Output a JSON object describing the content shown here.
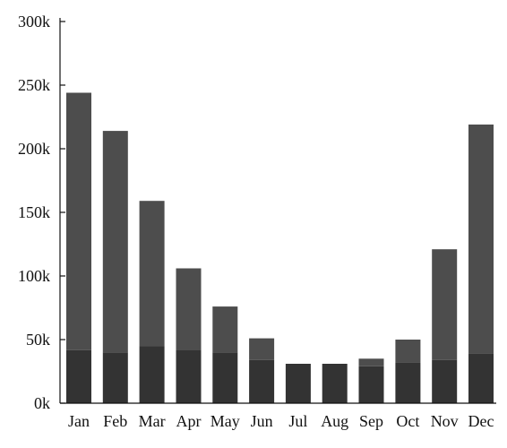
{
  "chart_data": {
    "type": "bar",
    "stacked": true,
    "categories": [
      "Jan",
      "Feb",
      "Mar",
      "Apr",
      "May",
      "Jun",
      "Jul",
      "Aug",
      "Sep",
      "Oct",
      "Nov",
      "Dec"
    ],
    "series": [
      {
        "values": [
          42000,
          40000,
          45000,
          42000,
          40000,
          34000,
          31000,
          31000,
          29000,
          32000,
          34000,
          39000
        ],
        "color": "#333333"
      },
      {
        "values": [
          202000,
          174000,
          114000,
          64000,
          36000,
          17000,
          0,
          0,
          6000,
          18000,
          87000,
          180000
        ],
        "color": "#4d4d4d"
      }
    ],
    "ylim": [
      0,
      300000
    ],
    "yticks": [
      0,
      50000,
      100000,
      150000,
      200000,
      250000,
      300000
    ],
    "ytick_labels": [
      "0k",
      "50k",
      "100k",
      "150k",
      "200k",
      "250k",
      "300k"
    ],
    "grid": false,
    "legend": "none"
  }
}
